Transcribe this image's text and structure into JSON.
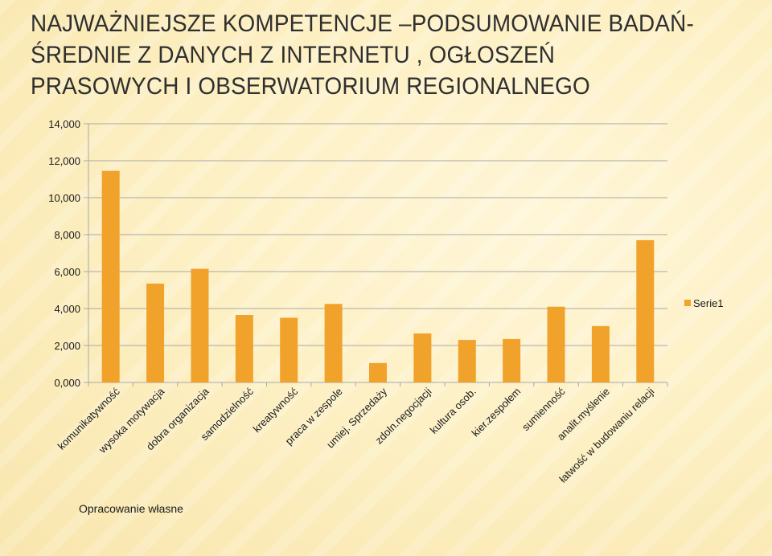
{
  "title": "NAJWAŻNIEJSZE KOMPETENCJE –PODSUMOWANIE BADAŃ- ŚREDNIE Z DANYCH Z INTERNETU , OGŁOSZEŃ PRASOWYCH I OBSERWATORIUM REGIONALNEGO",
  "note": "Opracowanie własne",
  "colors": {
    "bar": "#f0a22b",
    "grid": "#a8a8a8",
    "text": "#1a1a1a"
  },
  "chart_data": {
    "type": "bar",
    "categories": [
      "komunikatywność",
      "wysoka motywacja",
      "dobra organizacja",
      "samodzielność",
      "kreatywność",
      "praca w zespole",
      "umiej. Sprzedaży",
      "zdoln.negocjacji",
      "kultura osob.",
      "kier.zespołem",
      "sumienność",
      "analit.myślenie",
      "łatwość w budowaniu relacji"
    ],
    "series": [
      {
        "name": "Serie1",
        "values": [
          11.45,
          5.35,
          6.15,
          3.65,
          3.5,
          4.25,
          1.05,
          2.65,
          2.3,
          2.35,
          4.1,
          3.05,
          7.7
        ]
      }
    ],
    "ylim": [
      0,
      14
    ],
    "yticks": [
      "0,000",
      "2,000",
      "4,000",
      "6,000",
      "8,000",
      "10,000",
      "12,000",
      "14,000"
    ],
    "grid": true,
    "legend": "right"
  }
}
